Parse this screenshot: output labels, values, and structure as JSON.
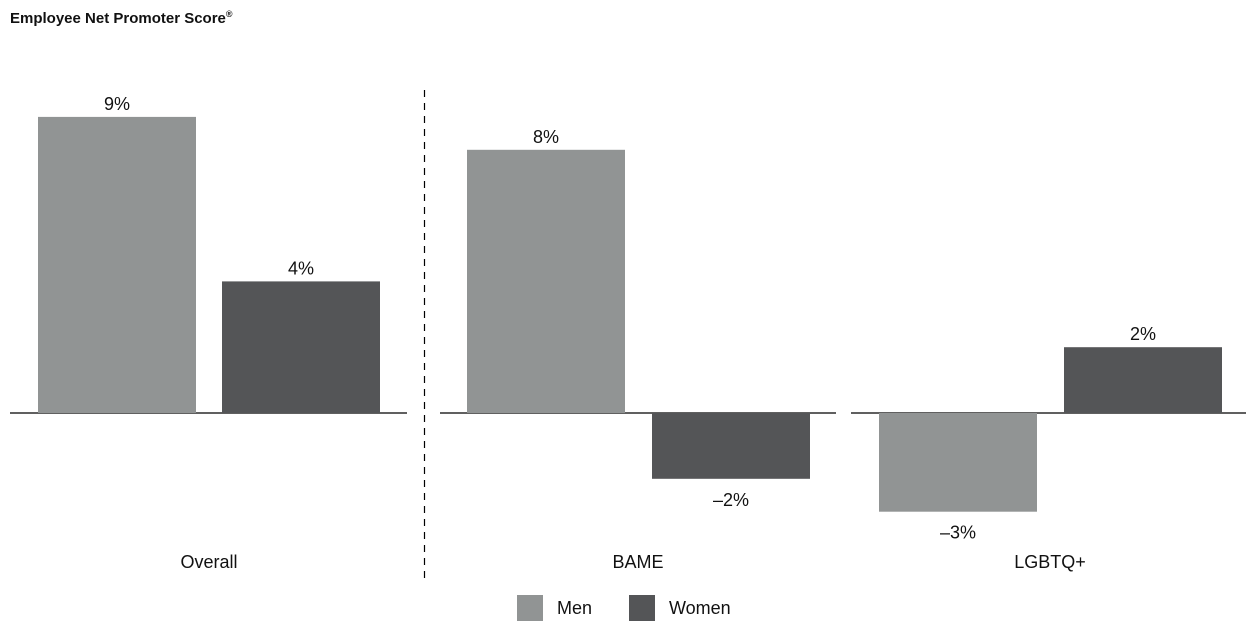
{
  "title": "Employee Net Promoter Score",
  "title_mark": "®",
  "colors": {
    "men": "#919494",
    "women": "#545557",
    "axis": "#000000",
    "text": "#111111"
  },
  "legend": {
    "men_label": "Men",
    "women_label": "Women"
  },
  "chart_data": {
    "type": "bar",
    "title": "Employee Net Promoter Score®",
    "categories": [
      "Overall",
      "BAME",
      "LGBTQ+"
    ],
    "series": [
      {
        "name": "Men",
        "values": [
          9,
          8,
          -3
        ],
        "labels": [
          "9%",
          "8%",
          "–3%"
        ]
      },
      {
        "name": "Women",
        "values": [
          4,
          -2,
          2
        ],
        "labels": [
          "4%",
          "–2%",
          "2%"
        ]
      }
    ],
    "unit": "%",
    "xlabel": "",
    "ylabel": "",
    "grid": false,
    "legend_position": "bottom",
    "separator_after": "Overall"
  }
}
